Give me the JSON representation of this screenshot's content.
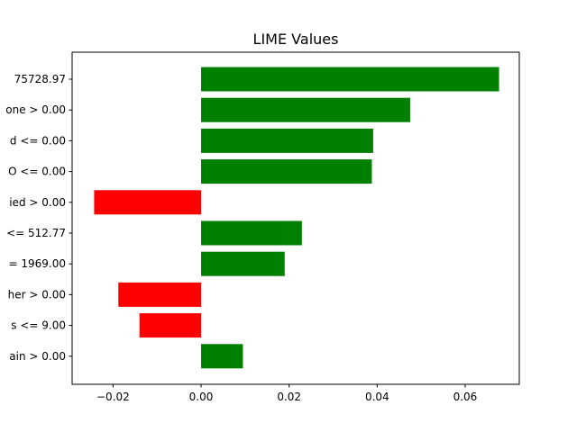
{
  "chart_data": {
    "type": "bar",
    "orientation": "horizontal",
    "title": "LIME Values",
    "xlabel": "",
    "ylabel": "",
    "xlim": [
      -0.0293,
      0.0723
    ],
    "x_ticks": [
      -0.02,
      0.0,
      0.02,
      0.04,
      0.06
    ],
    "x_tick_labels": [
      "−0.02",
      "0.00",
      "0.02",
      "0.04",
      "0.06"
    ],
    "grid": false,
    "categories": [
      "75728.97",
      "one > 0.00",
      "d <= 0.00",
      "O <= 0.00",
      "ied > 0.00",
      "<= 512.77",
      "= 1969.00",
      "her > 0.00",
      "s <= 9.00",
      "ain > 0.00"
    ],
    "values": [
      0.0677,
      0.0475,
      0.0391,
      0.0388,
      -0.0243,
      0.0229,
      0.019,
      -0.0188,
      -0.014,
      0.0095
    ],
    "colors": {
      "positive": "#008000",
      "negative": "#ff0000"
    }
  }
}
